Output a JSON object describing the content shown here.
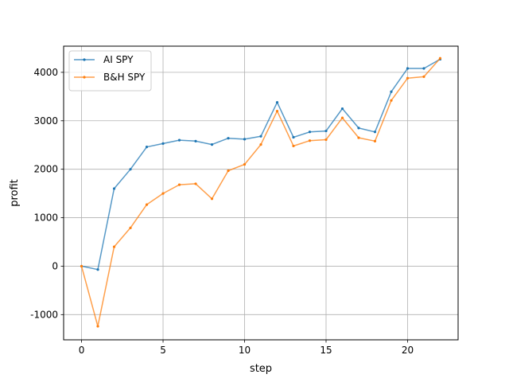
{
  "chart_data": {
    "type": "line",
    "title": "",
    "xlabel": "step",
    "ylabel": "profit",
    "xlim": [
      -1.1,
      23.1
    ],
    "ylim": [
      -1520,
      4540
    ],
    "xticks": [
      0,
      5,
      10,
      15,
      20
    ],
    "yticks": [
      -1000,
      0,
      1000,
      2000,
      3000,
      4000
    ],
    "xtick_labels": [
      "0",
      "5",
      "10",
      "15",
      "20"
    ],
    "ytick_labels": [
      "-1000",
      "0",
      "1000",
      "2000",
      "3000",
      "4000"
    ],
    "grid": true,
    "legend_position": "top-left",
    "x": [
      0,
      1,
      2,
      3,
      4,
      5,
      6,
      7,
      8,
      9,
      10,
      11,
      12,
      13,
      14,
      15,
      16,
      17,
      18,
      19,
      20,
      21,
      22
    ],
    "series": [
      {
        "name": "AI SPY",
        "color": "#1f77b4",
        "values": [
          0,
          -70,
          1600,
          2000,
          2460,
          2530,
          2600,
          2580,
          2510,
          2640,
          2620,
          2680,
          3380,
          2660,
          2770,
          2790,
          3250,
          2850,
          2770,
          3600,
          4080,
          4080,
          4270
        ]
      },
      {
        "name": "B&H SPY",
        "color": "#ff7f0e",
        "values": [
          0,
          -1240,
          400,
          790,
          1270,
          1500,
          1680,
          1700,
          1390,
          1970,
          2100,
          2510,
          3200,
          2480,
          2590,
          2610,
          3060,
          2650,
          2580,
          3420,
          3880,
          3910,
          4290
        ]
      }
    ]
  }
}
